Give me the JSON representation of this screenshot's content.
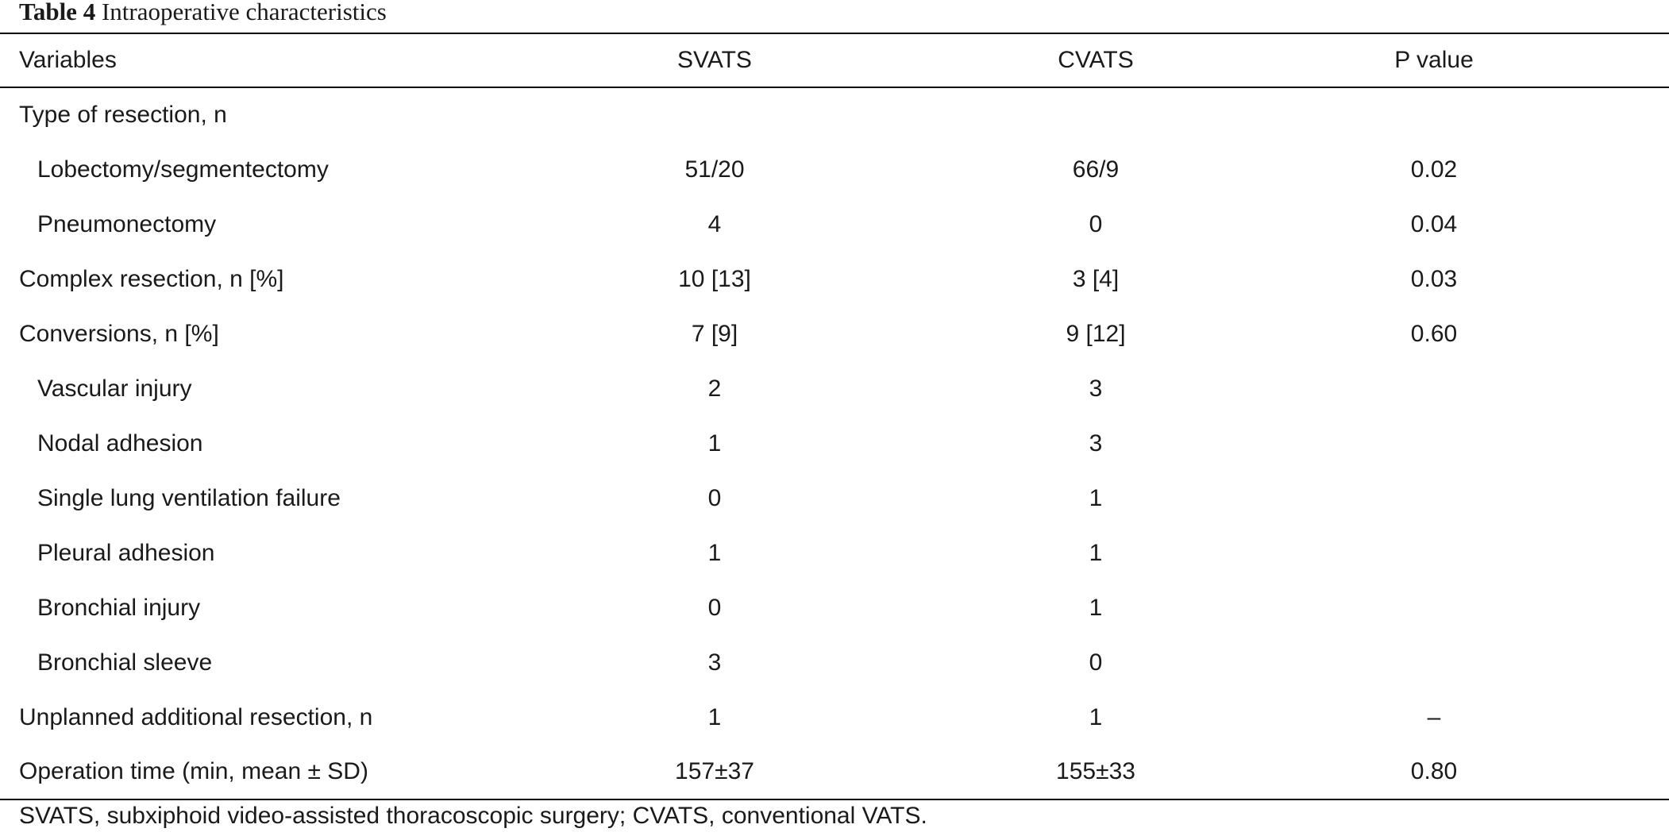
{
  "caption": {
    "label": "Table 4",
    "title": "Intraoperative characteristics"
  },
  "table": {
    "headers": [
      "Variables",
      "SVATS",
      "CVATS",
      "P value"
    ],
    "rows": [
      {
        "label": "Type of resection, n",
        "indent": false,
        "svats": "",
        "cvats": "",
        "p": ""
      },
      {
        "label": "Lobectomy/segmentectomy",
        "indent": true,
        "svats": "51/20",
        "cvats": "66/9",
        "p": "0.02"
      },
      {
        "label": "Pneumonectomy",
        "indent": true,
        "svats": "4",
        "cvats": "0",
        "p": "0.04"
      },
      {
        "label": "Complex resection, n [%]",
        "indent": false,
        "svats": "10 [13]",
        "cvats": "3 [4]",
        "p": "0.03"
      },
      {
        "label": "Conversions, n [%]",
        "indent": false,
        "svats": "7 [9]",
        "cvats": "9 [12]",
        "p": "0.60"
      },
      {
        "label": "Vascular injury",
        "indent": true,
        "svats": "2",
        "cvats": "3",
        "p": ""
      },
      {
        "label": "Nodal adhesion",
        "indent": true,
        "svats": "1",
        "cvats": "3",
        "p": ""
      },
      {
        "label": "Single lung ventilation failure",
        "indent": true,
        "svats": "0",
        "cvats": "1",
        "p": ""
      },
      {
        "label": "Pleural adhesion",
        "indent": true,
        "svats": "1",
        "cvats": "1",
        "p": ""
      },
      {
        "label": "Bronchial injury",
        "indent": true,
        "svats": "0",
        "cvats": "1",
        "p": ""
      },
      {
        "label": "Bronchial sleeve",
        "indent": true,
        "svats": "3",
        "cvats": "0",
        "p": ""
      },
      {
        "label": "Unplanned additional resection, n",
        "indent": false,
        "svats": "1",
        "cvats": "1",
        "p": "–"
      },
      {
        "label": "Operation time (min, mean ± SD)",
        "indent": false,
        "svats": "157±37",
        "cvats": "155±33",
        "p": "0.80"
      }
    ]
  },
  "footnote": "SVATS, subxiphoid video-assisted thoracoscopic surgery; CVATS, conventional VATS."
}
